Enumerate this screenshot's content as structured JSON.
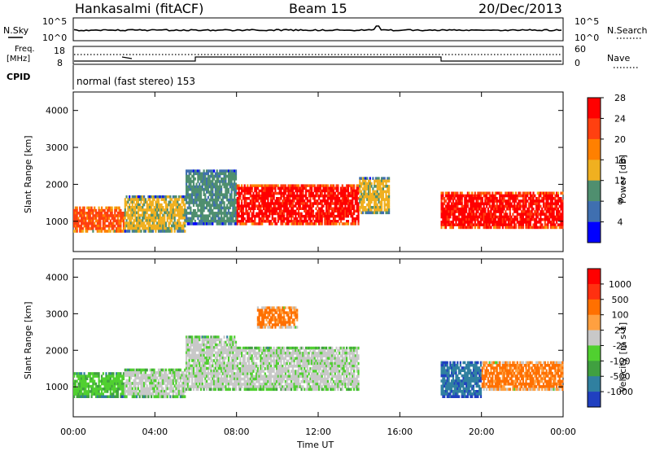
{
  "header": {
    "station": "Hankasalmi (fitACF)",
    "beam": "Beam 15",
    "date": "20/Dec/2013"
  },
  "top_panels": {
    "nsky_label": "N.Sky",
    "nsearch_label": "N.Search",
    "nsky_tick_top": "10^5",
    "nsky_tick_bottom": "10^0",
    "freq_label_1": "Freq.",
    "freq_label_2": "[MHz]",
    "freq_tick_top": "18",
    "freq_tick_bottom": "8",
    "nave_label": "Nave",
    "nave_tick_top": "60",
    "nave_tick_bottom": "0",
    "cpid_label": "CPID",
    "cpid_text": "normal (fast stereo) 153"
  },
  "x_axis": {
    "label": "Time UT",
    "ticks": [
      "00:00",
      "04:00",
      "08:00",
      "12:00",
      "16:00",
      "20:00",
      "00:00"
    ]
  },
  "chart_data": [
    {
      "type": "heatmap",
      "name": "power",
      "ylabel": "Slant Range [km]",
      "yticks": [
        "1000",
        "2000",
        "3000",
        "4000"
      ],
      "colorbar_label": "Power [dB]",
      "colorbar_ticks": [
        "4",
        "8",
        "12",
        "16",
        "20",
        "24",
        "28"
      ],
      "colors": [
        "#0000ff",
        "#3f6fb0",
        "#4f8f6f",
        "#f0b020",
        "#ff8000",
        "#ff4010",
        "#ff0000"
      ],
      "ylim": [
        180,
        4500
      ],
      "xlim_hours": [
        0,
        24
      ],
      "regions": [
        {
          "t0": 0.0,
          "t1": 2.5,
          "r0": 700,
          "r1": 1400,
          "level": 5
        },
        {
          "t0": 2.5,
          "t1": 5.5,
          "r0": 700,
          "r1": 1700,
          "level": 3
        },
        {
          "t0": 5.5,
          "t1": 8.0,
          "r0": 900,
          "r1": 2400,
          "level": 2
        },
        {
          "t0": 8.0,
          "t1": 14.0,
          "r0": 900,
          "r1": 2000,
          "level": 6
        },
        {
          "t0": 14.0,
          "t1": 15.5,
          "r0": 1200,
          "r1": 2200,
          "level": 3
        },
        {
          "t0": 18.0,
          "t1": 24.0,
          "r0": 800,
          "r1": 1800,
          "level": 6
        }
      ]
    },
    {
      "type": "heatmap",
      "name": "velocity",
      "ylabel": "Slant Range [km]",
      "yticks": [
        "1000",
        "2000",
        "3000",
        "4000"
      ],
      "colorbar_label": "Velocity [m s-1]",
      "colorbar_ticks": [
        "1000",
        "500",
        "100",
        "25",
        "-25",
        "-100",
        "-500",
        "-1000"
      ],
      "colors": [
        "#2040c0",
        "#3080a0",
        "#40a040",
        "#50d030",
        "#c8c8c8",
        "#ffa040",
        "#ff7000",
        "#ff3010",
        "#ff0000"
      ],
      "ylim": [
        180,
        4500
      ],
      "xlim_hours": [
        0,
        24
      ],
      "regions": [
        {
          "t0": 0.0,
          "t1": 2.5,
          "r0": 700,
          "r1": 1400,
          "level": 3
        },
        {
          "t0": 2.5,
          "t1": 5.5,
          "r0": 700,
          "r1": 1500,
          "level": 4
        },
        {
          "t0": 5.5,
          "t1": 8.0,
          "r0": 900,
          "r1": 2400,
          "level": 4
        },
        {
          "t0": 8.0,
          "t1": 14.0,
          "r0": 900,
          "r1": 2100,
          "level": 4
        },
        {
          "t0": 9.0,
          "t1": 11.0,
          "r0": 2600,
          "r1": 3200,
          "level": 6
        },
        {
          "t0": 18.0,
          "t1": 20.0,
          "r0": 700,
          "r1": 1700,
          "level": 1
        },
        {
          "t0": 20.0,
          "t1": 24.0,
          "r0": 900,
          "r1": 1700,
          "level": 6
        }
      ]
    }
  ]
}
